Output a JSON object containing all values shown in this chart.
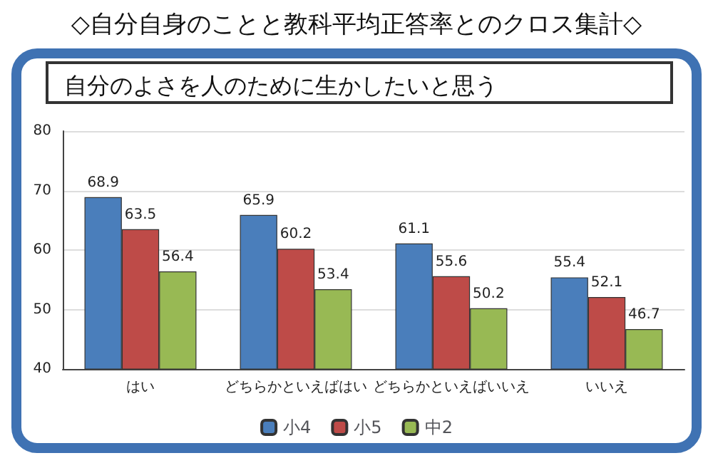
{
  "chart_data": {
    "type": "bar",
    "title": "◇自分自身のことと教科平均正答率とのクロス集計◇",
    "subtitle": "自分のよさを人のために生かしたいと思う",
    "categories": [
      "はい",
      "どちらかといえばはい",
      "どちらかといえばいいえ",
      "いいえ"
    ],
    "series": [
      {
        "name": "小4",
        "color": "#4a7ebb",
        "values": [
          68.9,
          65.9,
          61.1,
          55.4
        ]
      },
      {
        "name": "小5",
        "color": "#be4b48",
        "values": [
          63.5,
          60.2,
          55.6,
          52.1
        ]
      },
      {
        "name": "中2",
        "color": "#98b954",
        "values": [
          56.4,
          53.4,
          50.2,
          46.7
        ]
      }
    ],
    "ylim": [
      40,
      80
    ],
    "yticks": [
      40,
      50,
      60,
      70,
      80
    ],
    "grid": "y",
    "legend": "bottom",
    "data_labels": true
  }
}
